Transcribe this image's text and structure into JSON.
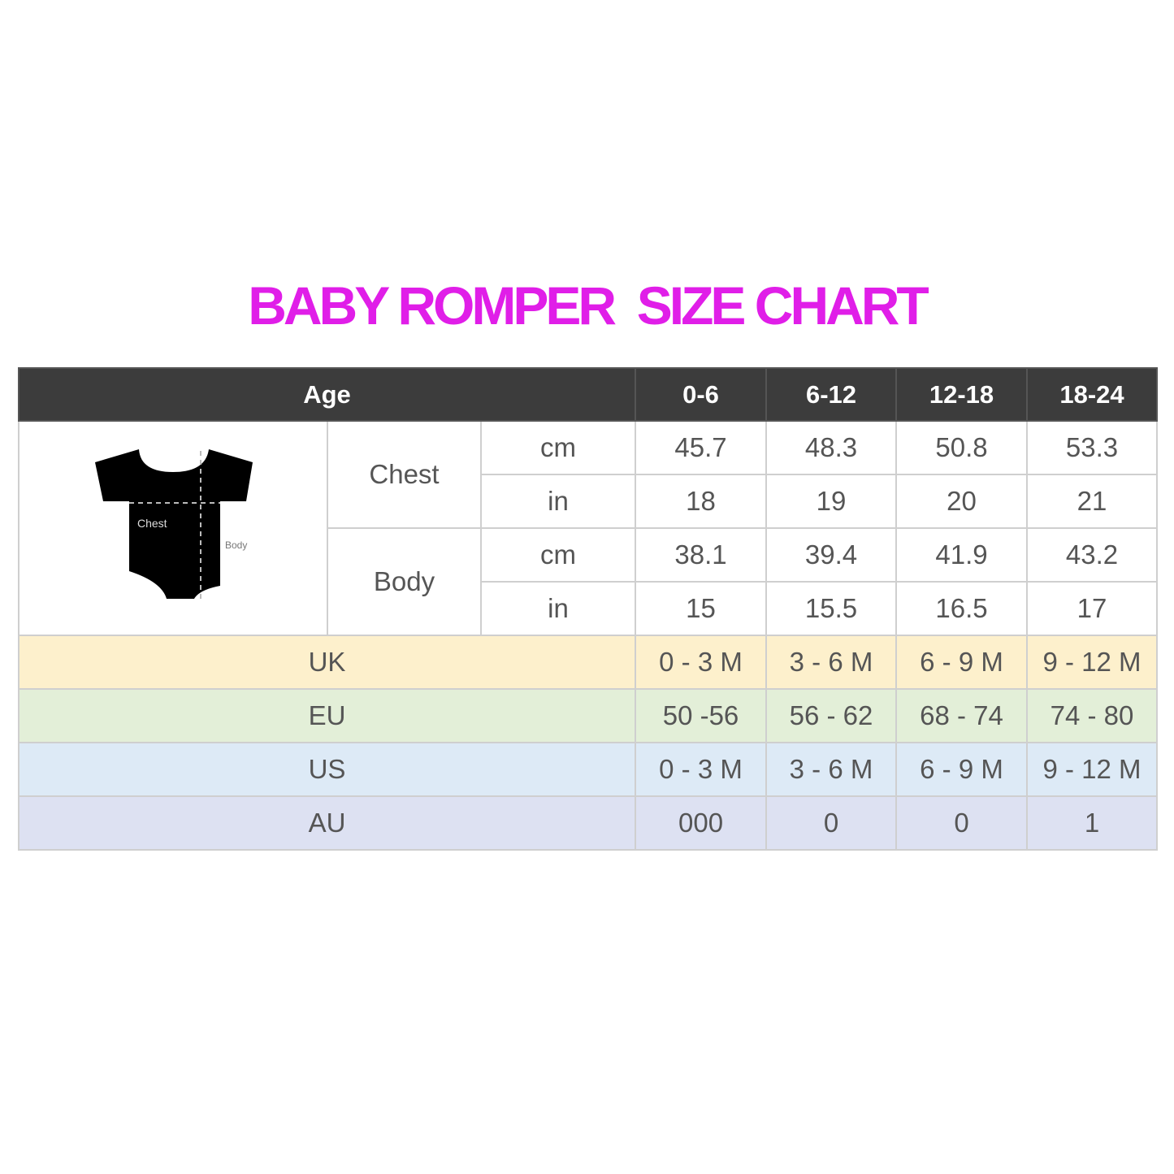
{
  "title": "BABY ROMPER  SIZE CHART",
  "colors": {
    "title": "#e01ee8",
    "header_bg": "#3c3c3c",
    "uk": "#fdf0cc",
    "eu": "#e3efd8",
    "us": "#ddeaf6",
    "au": "#dde1f2",
    "text": "#555555"
  },
  "illustration": {
    "icon": "baby-romper-icon",
    "chest_label": "Chest",
    "body_label": "Body"
  },
  "chart_data": {
    "type": "table",
    "title": "BABY ROMPER  SIZE CHART",
    "header": {
      "label": "Age",
      "columns": [
        "0-6",
        "6-12",
        "12-18",
        "18-24"
      ]
    },
    "measurements": [
      {
        "name": "Chest",
        "rows": [
          {
            "unit": "cm",
            "values": [
              "45.7",
              "48.3",
              "50.8",
              "53.3"
            ]
          },
          {
            "unit": "in",
            "values": [
              "18",
              "19",
              "20",
              "21"
            ]
          }
        ]
      },
      {
        "name": "Body",
        "rows": [
          {
            "unit": "cm",
            "values": [
              "38.1",
              "39.4",
              "41.9",
              "43.2"
            ]
          },
          {
            "unit": "in",
            "values": [
              "15",
              "15.5",
              "16.5",
              "17"
            ]
          }
        ]
      }
    ],
    "regions": [
      {
        "name": "UK",
        "values": [
          "0 - 3 M",
          "3 - 6 M",
          "6 - 9 M",
          "9 - 12 M"
        ]
      },
      {
        "name": "EU",
        "values": [
          "50 -56",
          "56 - 62",
          "68 - 74",
          "74 - 80"
        ]
      },
      {
        "name": "US",
        "values": [
          "0 - 3 M",
          "3 - 6 M",
          "6 - 9 M",
          "9 - 12 M"
        ]
      },
      {
        "name": "AU",
        "values": [
          "000",
          "0",
          "0",
          "1"
        ]
      }
    ]
  }
}
